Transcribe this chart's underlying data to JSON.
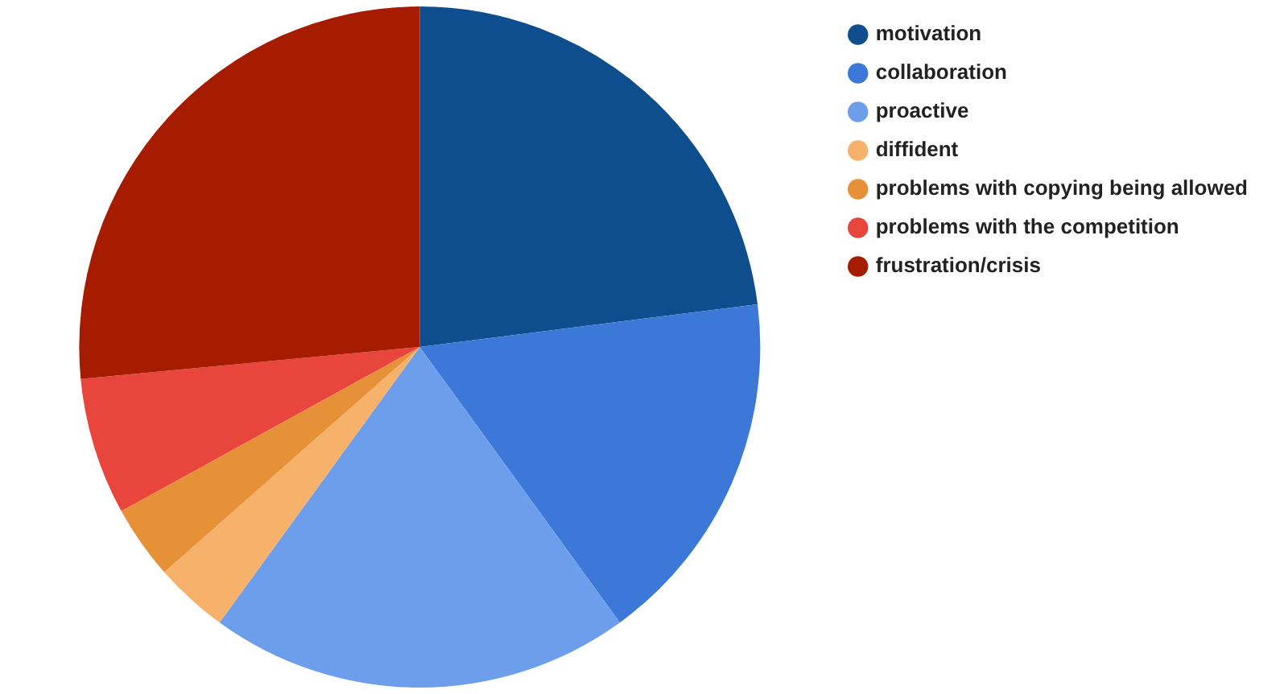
{
  "chart_data": {
    "type": "pie",
    "categories": [
      "motivation",
      "collaboration",
      "proactive",
      "diffident",
      "problems with copying being allowed",
      "problems with the competition",
      "frustration/crisis"
    ],
    "values": [
      23,
      17,
      20,
      3.5,
      3.5,
      6.5,
      26.5
    ],
    "colors": [
      "#0e4d8e",
      "#3b78d8",
      "#6d9eeb",
      "#f6b26b",
      "#e69138",
      "#e8453c",
      "#a61c00"
    ],
    "legend": "top right"
  }
}
